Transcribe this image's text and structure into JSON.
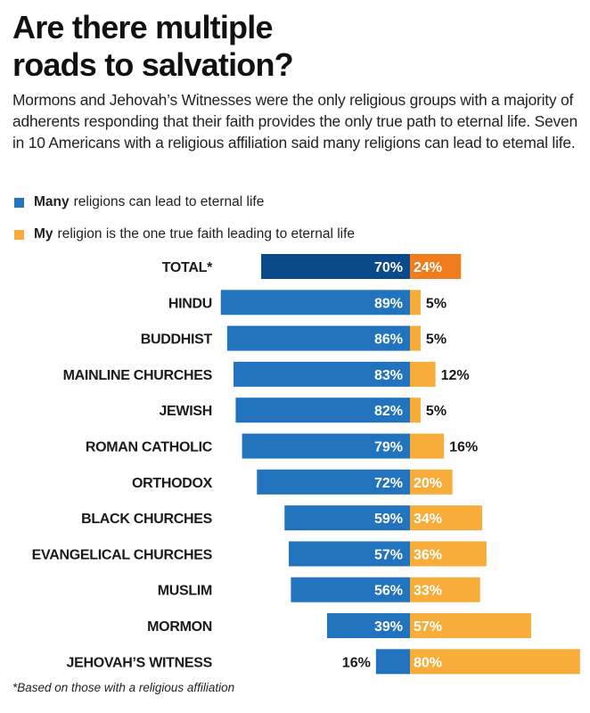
{
  "header": {
    "title_line1": "Are there multiple",
    "title_line2": "roads to salvation?",
    "subtitle": "Mormons and Jehovah’s Witnesses were the only religious groups with a majority of adherents responding that their faith provides the only true path to eternal life. Seven in 10 Americans with a religious affiliation said many religions can lead to etemal life."
  },
  "legend": [
    {
      "bold": "Many",
      "rest": "religions can lead to eternal life",
      "color": "#2273bd"
    },
    {
      "bold": "My",
      "rest": "religion is the one true faith leading to eternal life",
      "color": "#f8ad3b"
    }
  ],
  "footnote": "*Based on those with a religious affiliation",
  "colors": {
    "many": "#2273bd",
    "my": "#f8ad3b",
    "total_many": "#0b4a8a",
    "total_my": "#f07c1e"
  },
  "chart_data": {
    "type": "bar",
    "orientation": "horizontal-diverging",
    "title": "Are there multiple roads to salvation?",
    "xlabel": "",
    "ylabel": "",
    "categories": [
      "TOTAL*",
      "HINDU",
      "BUDDHIST",
      "MAINLINE CHURCHES",
      "JEWISH",
      "ROMAN CATHOLIC",
      "ORTHODOX",
      "BLACK CHURCHES",
      "EVANGELICAL CHURCHES",
      "MUSLIM",
      "MORMON",
      "JEHOVAH’S WITNESS"
    ],
    "series": [
      {
        "name": "Many religions can lead to eternal life",
        "direction": "left",
        "values": [
          70,
          89,
          86,
          83,
          82,
          79,
          72,
          59,
          57,
          56,
          39,
          16
        ]
      },
      {
        "name": "My religion is the one true faith leading to eternal life",
        "direction": "right",
        "values": [
          24,
          5,
          5,
          12,
          5,
          16,
          20,
          34,
          36,
          33,
          57,
          80
        ]
      }
    ],
    "value_format": "{v}%",
    "highlight_category": "TOTAL*",
    "legend_position": "top-left",
    "grid": false
  }
}
